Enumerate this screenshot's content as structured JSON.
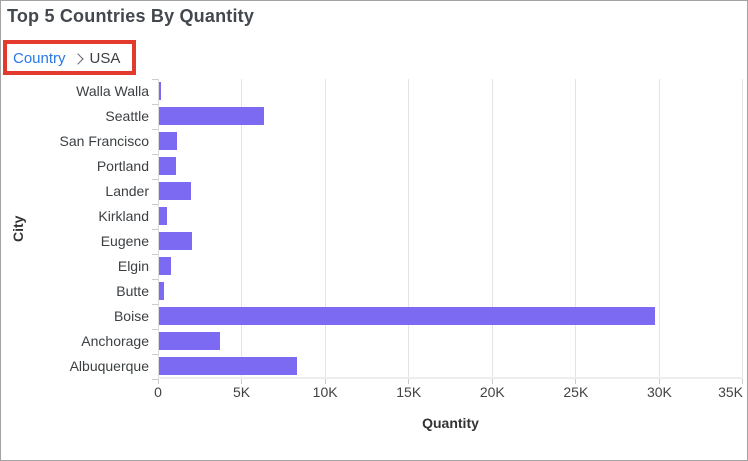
{
  "header": {
    "title": "Top 5 Countries By Quantity"
  },
  "breadcrumb": {
    "items": [
      {
        "label": "Country",
        "type": "link"
      },
      {
        "label": "USA",
        "type": "current"
      }
    ],
    "link_color": "#2878e8",
    "annotation_color": "#e23b2e"
  },
  "chart_data": {
    "type": "bar",
    "orientation": "horizontal",
    "categories": [
      "Walla Walla",
      "Seattle",
      "San Francisco",
      "Portland",
      "Lander",
      "Kirkland",
      "Eugene",
      "Elgin",
      "Butte",
      "Boise",
      "Anchorage",
      "Albuquerque"
    ],
    "values": [
      100,
      6300,
      1050,
      1000,
      1900,
      500,
      2000,
      700,
      300,
      29700,
      3650,
      8250
    ],
    "xlabel": "Quantity",
    "ylabel": "City",
    "xlim": [
      0,
      35000
    ],
    "xticks": [
      0,
      5000,
      10000,
      15000,
      20000,
      25000,
      30000,
      35000
    ],
    "xtick_labels": [
      "0",
      "5K",
      "10K",
      "15K",
      "20K",
      "25K",
      "30K",
      "35K"
    ],
    "bar_color": "#7c6bf2",
    "grid": "vertical",
    "legend": "none"
  }
}
